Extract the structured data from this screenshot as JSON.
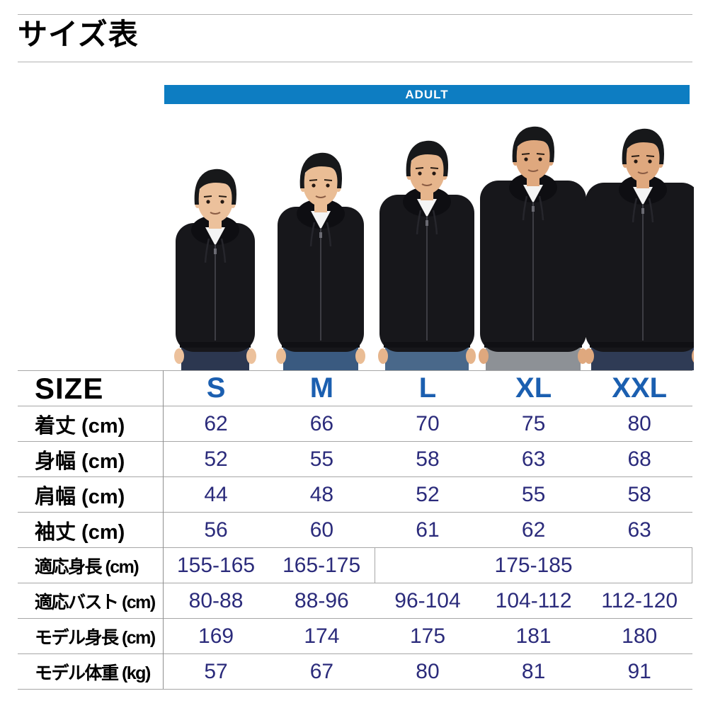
{
  "title": "サイズ表",
  "banner": {
    "label": "ADULT"
  },
  "photo": {
    "description": "5 male models wearing black zip-up hoodies over white t-shirts with jeans, sizes S to XXL",
    "models": [
      {
        "name": "model-s"
      },
      {
        "name": "model-m"
      },
      {
        "name": "model-l"
      },
      {
        "name": "model-xl"
      },
      {
        "name": "model-xxl"
      }
    ]
  },
  "colors": {
    "banner_blue": "#0d7dc2",
    "header_blue": "#1b5fb0",
    "value_navy": "#2b2b7b"
  },
  "table": {
    "corner_label": "SIZE",
    "columns": [
      "S",
      "M",
      "L",
      "XL",
      "XXL"
    ],
    "rows": [
      {
        "label": "着丈 (cm)",
        "cells": [
          {
            "text": "62"
          },
          {
            "text": "66"
          },
          {
            "text": "70"
          },
          {
            "text": "75"
          },
          {
            "text": "80"
          }
        ]
      },
      {
        "label": "身幅 (cm)",
        "cells": [
          {
            "text": "52"
          },
          {
            "text": "55"
          },
          {
            "text": "58"
          },
          {
            "text": "63"
          },
          {
            "text": "68"
          }
        ]
      },
      {
        "label": "肩幅 (cm)",
        "cells": [
          {
            "text": "44"
          },
          {
            "text": "48"
          },
          {
            "text": "52"
          },
          {
            "text": "55"
          },
          {
            "text": "58"
          }
        ]
      },
      {
        "label": "袖丈 (cm)",
        "cells": [
          {
            "text": "56"
          },
          {
            "text": "60"
          },
          {
            "text": "61"
          },
          {
            "text": "62"
          },
          {
            "text": "63"
          }
        ]
      },
      {
        "label": "適応身長 (cm)",
        "cells": [
          {
            "text": "155-165"
          },
          {
            "text": "165-175"
          },
          {
            "text": "175-185",
            "span": 3
          }
        ]
      },
      {
        "label": "適応バスト (cm)",
        "cells": [
          {
            "text": "80-88"
          },
          {
            "text": "88-96"
          },
          {
            "text": "96-104"
          },
          {
            "text": "104-112"
          },
          {
            "text": "112-120"
          }
        ]
      },
      {
        "label": "モデル身長 (cm)",
        "cells": [
          {
            "text": "169"
          },
          {
            "text": "174"
          },
          {
            "text": "175"
          },
          {
            "text": "181"
          },
          {
            "text": "180"
          }
        ]
      },
      {
        "label": "モデル体重 (kg)",
        "cells": [
          {
            "text": "57"
          },
          {
            "text": "67"
          },
          {
            "text": "80"
          },
          {
            "text": "81"
          },
          {
            "text": "91"
          }
        ]
      }
    ]
  }
}
